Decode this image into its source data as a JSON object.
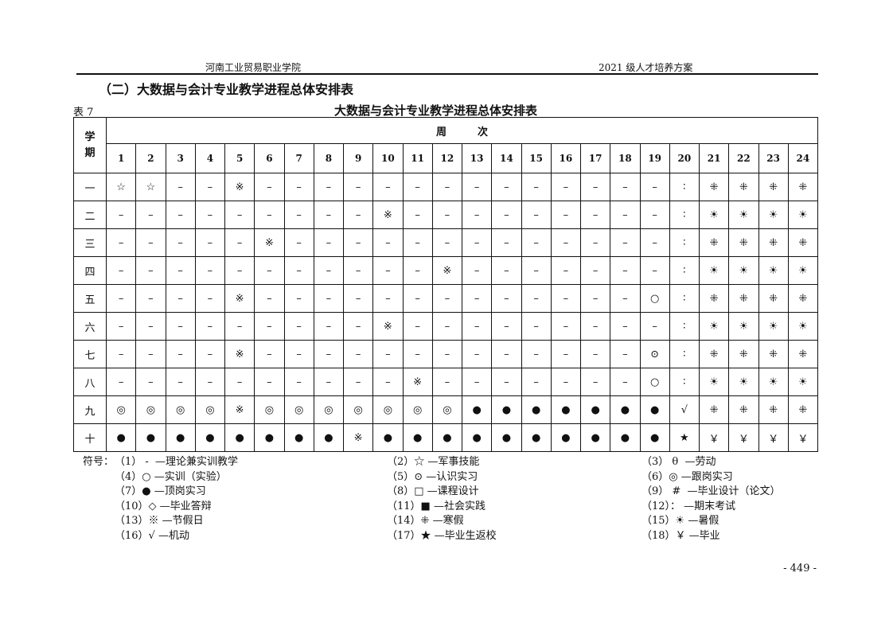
{
  "header": {
    "left": "河南工业贸易职业学院",
    "right": "2021 级人才培养方案"
  },
  "section_title": "（二）大数据与会计专业教学进程总体安排表",
  "table_number": "表 7",
  "table_title": "大数据与会计专业教学进程总体安排表",
  "table": {
    "semester_header": "学\n期",
    "week_header": "周　　　次",
    "weeks": [
      "1",
      "2",
      "3",
      "4",
      "5",
      "6",
      "7",
      "8",
      "9",
      "10",
      "11",
      "12",
      "13",
      "14",
      "15",
      "16",
      "17",
      "18",
      "19",
      "20",
      "21",
      "22",
      "23",
      "24"
    ],
    "rows": [
      {
        "semester": "一",
        "cells": [
          "☆",
          "☆",
          "–",
          "–",
          "※",
          "–",
          "–",
          "–",
          "–",
          "–",
          "–",
          "–",
          "–",
          "–",
          "–",
          "–",
          "–",
          "–",
          "–",
          "∶",
          "⁜",
          "⁜",
          "⁜",
          "⁜"
        ]
      },
      {
        "semester": "二",
        "cells": [
          "–",
          "–",
          "–",
          "–",
          "–",
          "–",
          "–",
          "–",
          "–",
          "※",
          "–",
          "–",
          "–",
          "–",
          "–",
          "–",
          "–",
          "–",
          "–",
          "∶",
          "☀",
          "☀",
          "☀",
          "☀"
        ]
      },
      {
        "semester": "三",
        "cells": [
          "–",
          "–",
          "–",
          "–",
          "–",
          "※",
          "–",
          "–",
          "–",
          "–",
          "–",
          "–",
          "–",
          "–",
          "–",
          "–",
          "–",
          "–",
          "–",
          "∶",
          "⁜",
          "⁜",
          "⁜",
          "⁜"
        ]
      },
      {
        "semester": "四",
        "cells": [
          "–",
          "–",
          "–",
          "–",
          "–",
          "–",
          "–",
          "–",
          "–",
          "–",
          "–",
          "※",
          "–",
          "–",
          "–",
          "–",
          "–",
          "–",
          "–",
          "∶",
          "☀",
          "☀",
          "☀",
          "☀"
        ]
      },
      {
        "semester": "五",
        "cells": [
          "–",
          "–",
          "–",
          "–",
          "※",
          "–",
          "–",
          "–",
          "–",
          "–",
          "–",
          "–",
          "–",
          "–",
          "–",
          "–",
          "–",
          "–",
          "○",
          "∶",
          "⁜",
          "⁜",
          "⁜",
          "⁜"
        ]
      },
      {
        "semester": "六",
        "cells": [
          "–",
          "–",
          "–",
          "–",
          "–",
          "–",
          "–",
          "–",
          "–",
          "※",
          "–",
          "–",
          "–",
          "–",
          "–",
          "–",
          "–",
          "–",
          "–",
          "∶",
          "☀",
          "☀",
          "☀",
          "☀"
        ]
      },
      {
        "semester": "七",
        "cells": [
          "–",
          "–",
          "–",
          "–",
          "※",
          "–",
          "–",
          "–",
          "–",
          "–",
          "–",
          "–",
          "–",
          "–",
          "–",
          "–",
          "–",
          "–",
          "⊙",
          "∶",
          "⁜",
          "⁜",
          "⁜",
          "⁜"
        ]
      },
      {
        "semester": "八",
        "cells": [
          "–",
          "–",
          "–",
          "–",
          "–",
          "–",
          "–",
          "–",
          "–",
          "–",
          "※",
          "–",
          "–",
          "–",
          "–",
          "–",
          "–",
          "–",
          "○",
          "∶",
          "☀",
          "☀",
          "☀",
          "☀"
        ]
      },
      {
        "semester": "九",
        "cells": [
          "◎",
          "◎",
          "◎",
          "◎",
          "※",
          "◎",
          "◎",
          "◎",
          "◎",
          "◎",
          "◎",
          "◎",
          "●",
          "●",
          "●",
          "●",
          "●",
          "●",
          "●",
          "√",
          "⁜",
          "⁜",
          "⁜",
          "⁜"
        ]
      },
      {
        "semester": "十",
        "cells": [
          "●",
          "●",
          "●",
          "●",
          "●",
          "●",
          "●",
          "●",
          "※",
          "●",
          "●",
          "●",
          "●",
          "●",
          "●",
          "●",
          "●",
          "●",
          "●",
          "★",
          "￥",
          "￥",
          "￥",
          "￥"
        ]
      }
    ]
  },
  "legend": {
    "label": "符号：",
    "col1": [
      "（1） -  —理论兼实训教学",
      "（4）○ —实训（实验）",
      "（7）● —顶岗实习",
      "（10）◇ —毕业答辩",
      "（13）※ —节假日",
      "（16）√ —机动"
    ],
    "col2": [
      "（2）☆ —军事技能",
      "（5）⊙ —认识实习",
      "（8）□ —课程设计",
      "（11）■ —社会实践",
      "（14）⁜ —寒假",
      "（17）★ —毕业生返校"
    ],
    "col3": [
      "（3） θ  —劳动",
      "（6）◎ —跟岗实习",
      "（9） #  —毕业设计（论文）",
      "（12）： —期末考试",
      "（15）☀ —暑假",
      "（18）￥ —毕业"
    ]
  },
  "page_number": "- 449 -"
}
